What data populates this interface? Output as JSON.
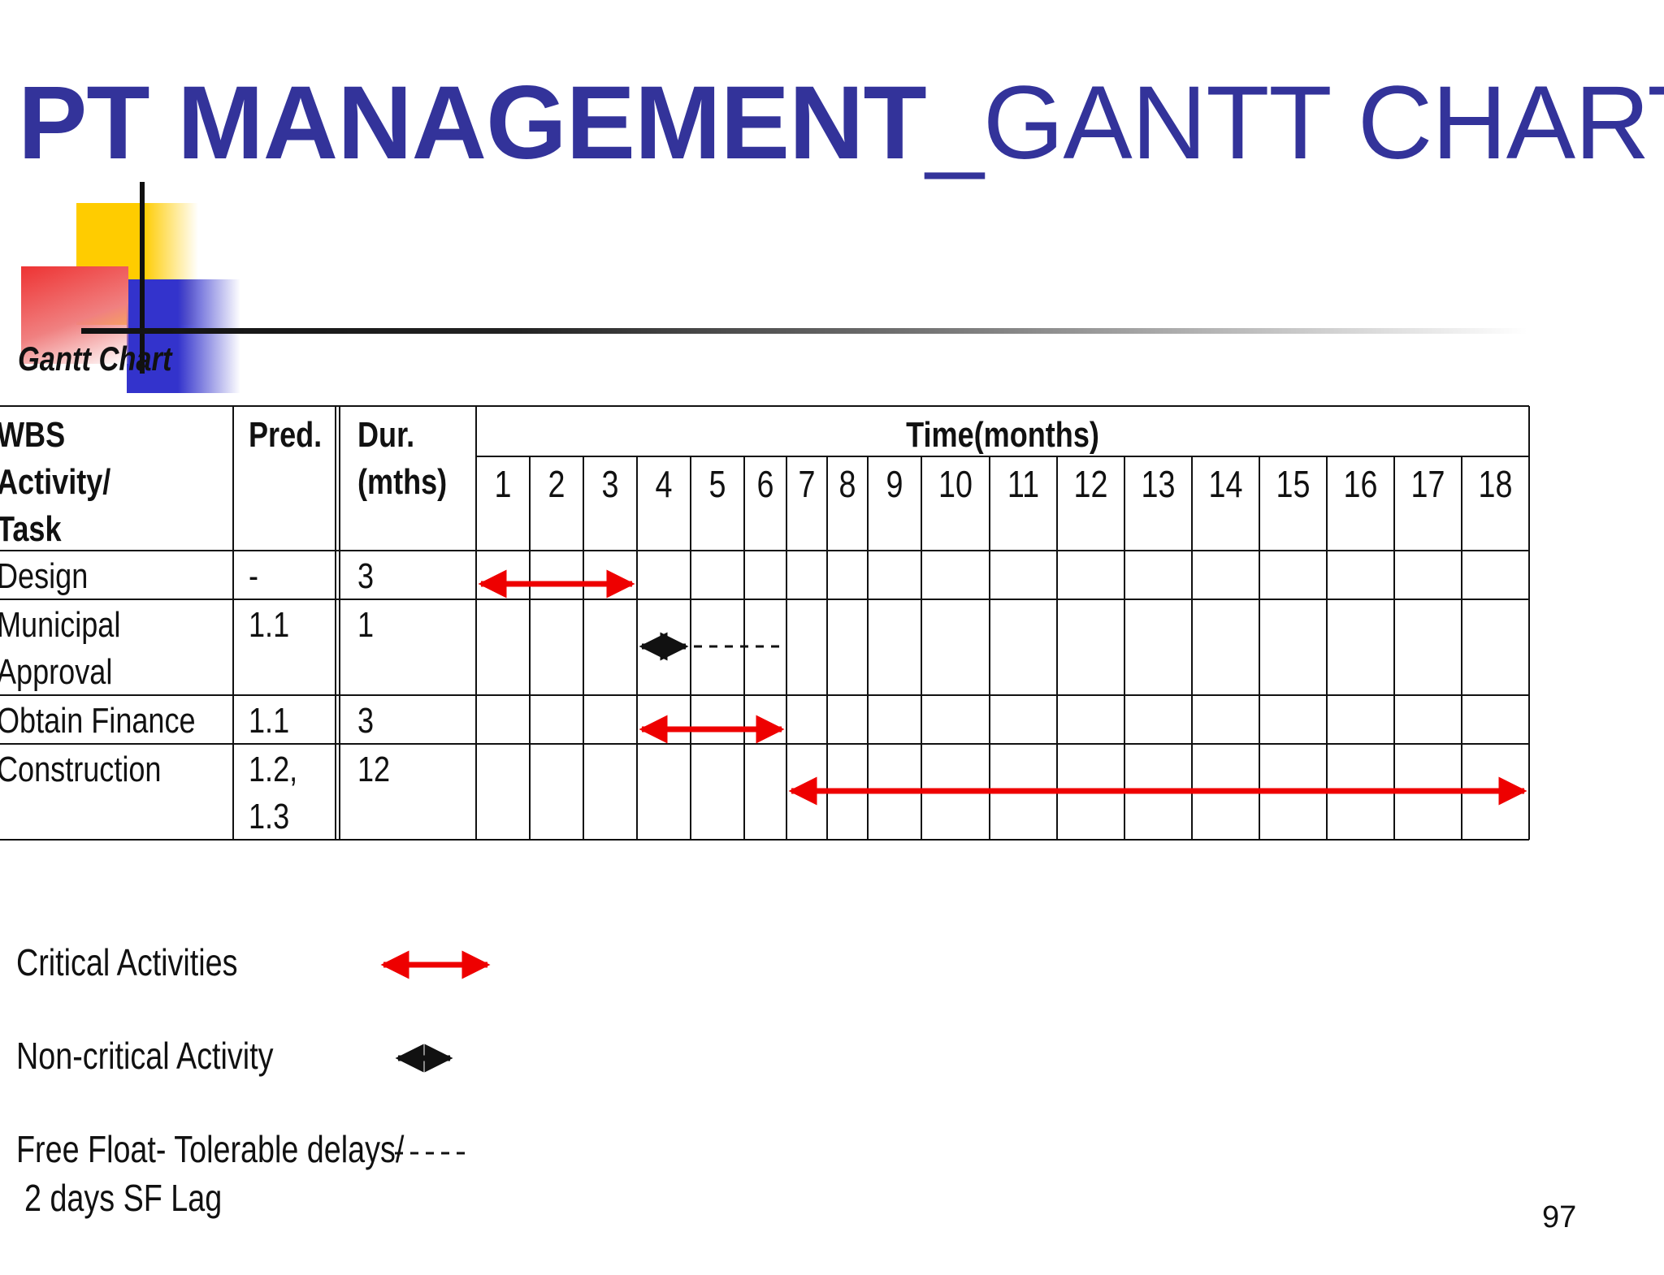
{
  "title": {
    "part1": "PT MANAGEMENT",
    "part2": "_GANTT CHART"
  },
  "subtitle": "Gantt Chart",
  "colors": {
    "title": "#33339a",
    "critical": "#ee0000",
    "noncritical": "#111111",
    "square_yellow": "#ffcc00",
    "square_red": "#ee3333",
    "square_blue": "#3333cc"
  },
  "chart_data": {
    "type": "table",
    "columns": {
      "wbs": [
        "WBS",
        "Activity/",
        "Task"
      ],
      "pred": "Pred.",
      "dur": [
        "Dur.",
        "(mths)"
      ],
      "time": "Time(months)"
    },
    "months": [
      1,
      2,
      3,
      4,
      5,
      6,
      7,
      8,
      9,
      10,
      11,
      12,
      13,
      14,
      15,
      16,
      17,
      18
    ],
    "tasks": [
      {
        "name": [
          "Design"
        ],
        "pred": [
          "-"
        ],
        "dur": "3",
        "start": 1,
        "end": 3,
        "kind": "critical"
      },
      {
        "name": [
          "Municipal",
          "Approval"
        ],
        "pred": [
          "1.1"
        ],
        "dur": "1",
        "start": 4,
        "end": 4,
        "kind": "noncritical",
        "float_end": 6
      },
      {
        "name": [
          "Obtain Finance"
        ],
        "pred": [
          "1.1"
        ],
        "dur": "3",
        "start": 4,
        "end": 6,
        "kind": "critical"
      },
      {
        "name": [
          "Construction"
        ],
        "pred": [
          "1.2,",
          "1.3"
        ],
        "dur": "12",
        "start": 7,
        "end": 18,
        "kind": "critical"
      }
    ]
  },
  "legend": [
    {
      "label": [
        "Critical Activities"
      ],
      "kind": "critical"
    },
    {
      "label": [
        "Non-critical Activity"
      ],
      "kind": "noncritical"
    },
    {
      "label": [
        "Free Float- Tolerable delays/",
        "2 days SF Lag"
      ],
      "kind": "float"
    }
  ],
  "page_number": "97"
}
